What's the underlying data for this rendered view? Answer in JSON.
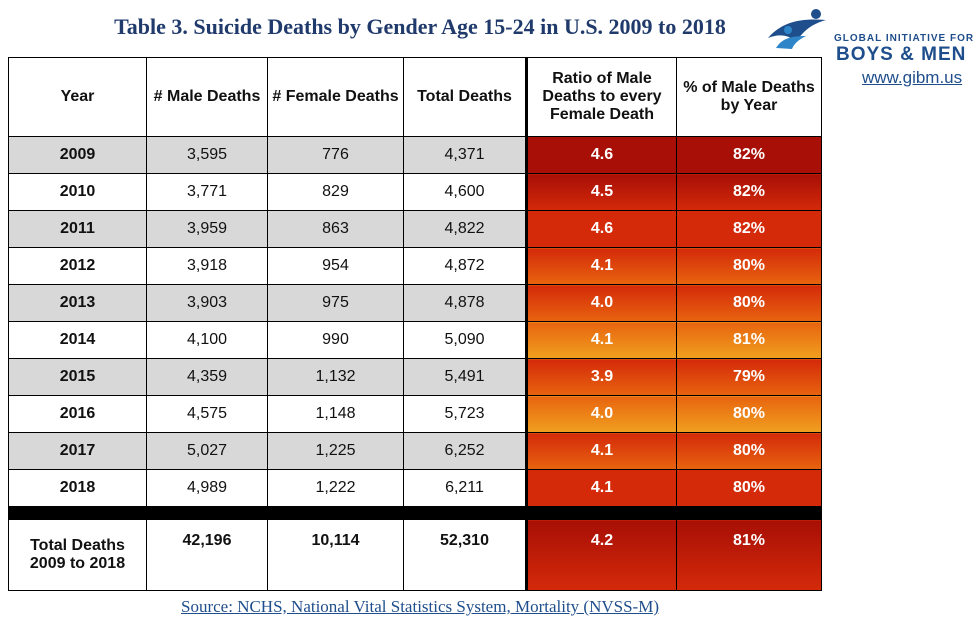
{
  "title": "Table 3. Suicide Deaths by Gender Age 15-24 in U.S. 2009 to 2018",
  "logo": {
    "line1": "GLOBAL INITIATIVE FOR",
    "line2": "BOYS & MEN",
    "url": "www.gibm.us",
    "icon": "people-figures-icon",
    "brand_color": "#1f4e8c"
  },
  "table": {
    "headers": [
      "Year",
      "# Male Deaths",
      "# Female Deaths",
      "Total Deaths",
      "Ratio of Male Deaths to every Female Death",
      "% of Male Deaths by Year"
    ],
    "rows": [
      {
        "year": "2009",
        "male": "3,595",
        "female": "776",
        "total": "4,371",
        "ratio": "4.6",
        "pct": "82%"
      },
      {
        "year": "2010",
        "male": "3,771",
        "female": "829",
        "total": "4,600",
        "ratio": "4.5",
        "pct": "82%"
      },
      {
        "year": "2011",
        "male": "3,959",
        "female": "863",
        "total": "4,822",
        "ratio": "4.6",
        "pct": "82%"
      },
      {
        "year": "2012",
        "male": "3,918",
        "female": "954",
        "total": "4,872",
        "ratio": "4.1",
        "pct": "80%"
      },
      {
        "year": "2013",
        "male": "3,903",
        "female": "975",
        "total": "4,878",
        "ratio": "4.0",
        "pct": "80%"
      },
      {
        "year": "2014",
        "male": "4,100",
        "female": "990",
        "total": "5,090",
        "ratio": "4.1",
        "pct": "81%"
      },
      {
        "year": "2015",
        "male": "4,359",
        "female": "1,132",
        "total": "5,491",
        "ratio": "3.9",
        "pct": "79%"
      },
      {
        "year": "2016",
        "male": "4,575",
        "female": "1,148",
        "total": "5,723",
        "ratio": "4.0",
        "pct": "80%"
      },
      {
        "year": "2017",
        "male": "5,027",
        "female": "1,225",
        "total": "6,252",
        "ratio": "4.1",
        "pct": "80%"
      },
      {
        "year": "2018",
        "male": "4,989",
        "female": "1,222",
        "total": "6,211",
        "ratio": "4.1",
        "pct": "80%"
      }
    ],
    "total_row": {
      "label": "Total Deaths 2009 to 2018",
      "male": "42,196",
      "female": "10,114",
      "total": "52,310",
      "ratio": "4.2",
      "pct": "81%"
    },
    "heat_colors": {
      "dark_red": "#a80f06",
      "red": "#d42a0a",
      "orange": "#e8640f",
      "amber": "#f0a020"
    }
  },
  "source": "Source: NCHS, National Vital Statistics System, Mortality (NVSS-M)"
}
